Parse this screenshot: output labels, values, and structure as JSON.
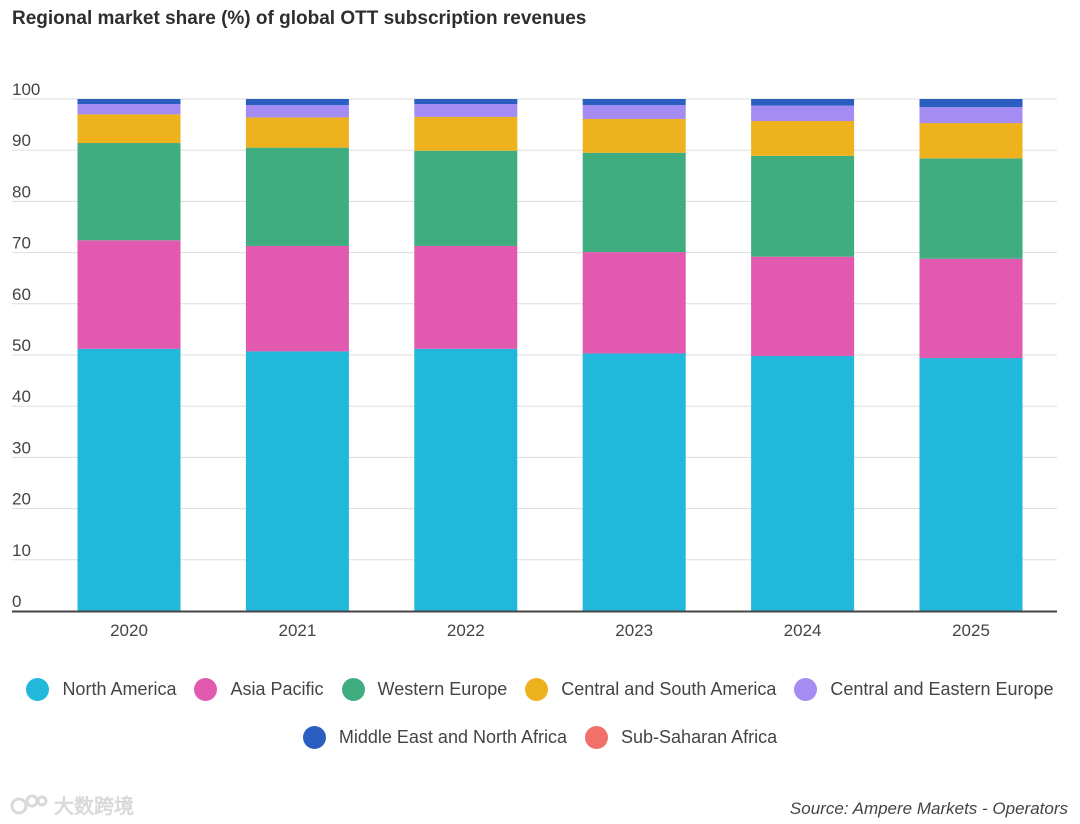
{
  "chart_data": {
    "type": "bar",
    "stacked": true,
    "title": "Regional market share (%) of global OTT subscription revenues",
    "categories": [
      "2020",
      "2021",
      "2022",
      "2023",
      "2024",
      "2025"
    ],
    "ylim": [
      0,
      100
    ],
    "yticks": [
      0,
      10,
      20,
      30,
      40,
      50,
      60,
      70,
      80,
      90,
      100
    ],
    "xlabel": "",
    "ylabel": "",
    "legend_position": "bottom",
    "series": [
      {
        "name": "North America",
        "color": "#22B8DB",
        "values": [
          51.2,
          50.7,
          51.2,
          50.3,
          49.8,
          49.4
        ]
      },
      {
        "name": "Asia Pacific",
        "color": "#E15AAF",
        "values": [
          21.2,
          20.6,
          20.1,
          19.8,
          19.4,
          19.4
        ]
      },
      {
        "name": "Western Europe",
        "color": "#40AD81",
        "values": [
          19.0,
          19.2,
          18.6,
          19.4,
          19.7,
          19.6
        ]
      },
      {
        "name": "Central and South America",
        "color": "#EDB21E",
        "values": [
          5.6,
          5.9,
          6.6,
          6.6,
          6.8,
          6.9
        ]
      },
      {
        "name": "Central and Eastern Europe",
        "color": "#A48CF2",
        "values": [
          2.0,
          2.4,
          2.5,
          2.7,
          3.0,
          3.1
        ]
      },
      {
        "name": "Middle East and North Africa",
        "color": "#2A5EC0",
        "values": [
          1.0,
          1.2,
          1.0,
          1.2,
          1.3,
          1.6
        ]
      },
      {
        "name": "Sub-Saharan Africa",
        "color": "#F2706A",
        "values": [
          0,
          0,
          0,
          0,
          0,
          0
        ]
      }
    ]
  },
  "source": "Source: Ampere Markets - Operators",
  "watermark": "大数跨境"
}
